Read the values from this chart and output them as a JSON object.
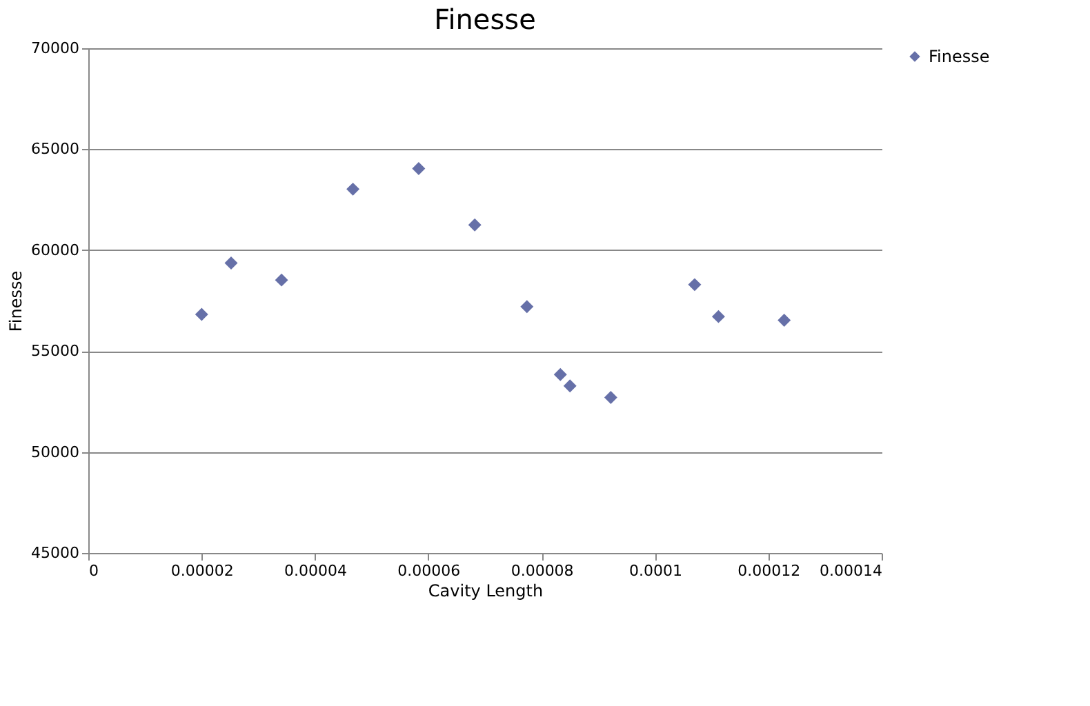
{
  "chart_data": {
    "type": "scatter",
    "title": "Finesse",
    "xlabel": "Cavity Length",
    "ylabel": "Finesse",
    "x": [
      2e-05,
      2.52e-05,
      3.41e-05,
      4.67e-05,
      5.83e-05,
      6.82e-05,
      7.74e-05,
      8.33e-05,
      8.5e-05,
      9.22e-05,
      0.000107,
      0.0001112,
      0.0001228
    ],
    "series": [
      {
        "name": "Finesse",
        "color": "#6670a8",
        "values": [
          56820,
          59360,
          58520,
          63020,
          64040,
          61250,
          57200,
          53840,
          53270,
          52700,
          58290,
          56710,
          56530
        ]
      }
    ],
    "xlim": [
      0,
      0.00014
    ],
    "xticks": [
      0,
      {
        "value": 2e-05,
        "label": "0.00002"
      },
      {
        "value": 4e-05,
        "label": "0.00004"
      },
      {
        "value": 6e-05,
        "label": "0.00006"
      },
      {
        "value": 8e-05,
        "label": "0.00008"
      },
      0.0001,
      0.00012,
      0.00014
    ],
    "ylim": [
      45000,
      70000
    ],
    "yticks": [
      45000,
      50000,
      55000,
      60000,
      65000,
      70000
    ],
    "grid": "y",
    "legend": "right",
    "marker": "diamond"
  }
}
